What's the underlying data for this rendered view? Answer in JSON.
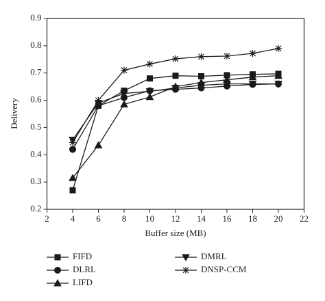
{
  "chart_data": {
    "type": "line",
    "x_label": "Buffer size (MB)",
    "y_label": "Delivery",
    "x": [
      4,
      6,
      8,
      10,
      12,
      14,
      16,
      18,
      20
    ],
    "series": [
      {
        "name": "FIFD",
        "color": "#1a1a1a",
        "marker": "square",
        "values": [
          0.27,
          0.58,
          0.635,
          0.68,
          0.69,
          0.688,
          0.692,
          0.695,
          0.697
        ]
      },
      {
        "name": "DLRL",
        "color": "#1a1a1a",
        "marker": "circle",
        "values": [
          0.42,
          0.58,
          0.61,
          0.635,
          0.64,
          0.645,
          0.652,
          0.658,
          0.66
        ]
      },
      {
        "name": "LIFD",
        "color": "#1a1a1a",
        "marker": "triangle-up",
        "values": [
          0.315,
          0.435,
          0.585,
          0.612,
          0.65,
          0.665,
          0.675,
          0.685,
          0.69
        ]
      },
      {
        "name": "DMRL",
        "color": "#1a1a1a",
        "marker": "triangle-down",
        "values": [
          0.455,
          0.59,
          0.625,
          0.633,
          0.645,
          0.655,
          0.66,
          0.66,
          0.66
        ]
      },
      {
        "name": "DNSP-CCM",
        "color": "#1a1a1a",
        "marker": "star",
        "values": [
          0.445,
          0.6,
          0.71,
          0.733,
          0.752,
          0.76,
          0.762,
          0.772,
          0.79
        ]
      }
    ],
    "xlim": [
      2,
      22
    ],
    "xticks": [
      2,
      4,
      6,
      8,
      10,
      12,
      14,
      16,
      18,
      20,
      22
    ],
    "ylim": [
      0.2,
      0.9
    ],
    "yticks": [
      0.2,
      0.3,
      0.4,
      0.5,
      0.6,
      0.7,
      0.8,
      0.9
    ],
    "grid": false
  }
}
